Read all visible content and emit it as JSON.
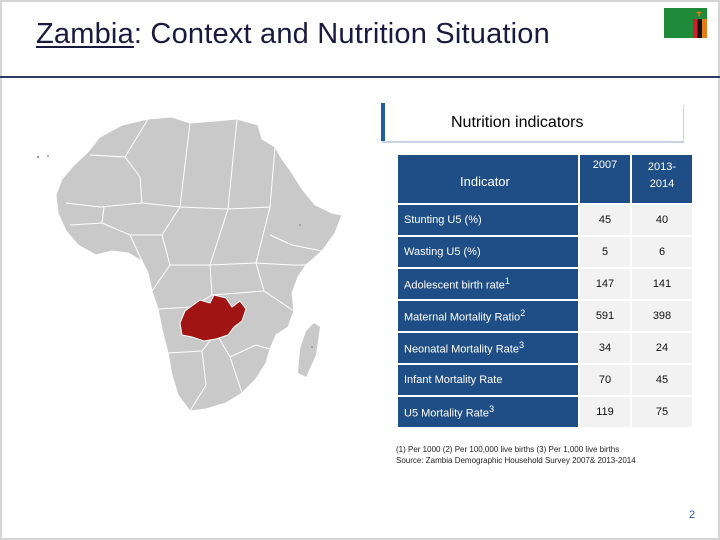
{
  "title": {
    "country": "Zambia",
    "rest": ": Context and Nutrition Situation"
  },
  "colors": {
    "title_rule": "#2f3a63",
    "table_header": "#1f4e86",
    "zambia_highlight": "#a01414",
    "map_fill": "#c9c9c9",
    "map_border": "#ffffff",
    "flag_green": "#1e8a3a",
    "flag_red": "#d21f2b",
    "flag_black": "#111111",
    "flag_orange": "#e37b17"
  },
  "section": {
    "label": "Nutrition indicators"
  },
  "table": {
    "header": {
      "indicator": "Indicator",
      "year1": "2007",
      "year2_line1": "2013-",
      "year2_line2": "2014"
    },
    "rows": [
      {
        "indicator": "Stunting U5 (%)",
        "v2007": "45",
        "v2014": "40"
      },
      {
        "indicator": "Wasting U5 (%)",
        "v2007": "5",
        "v2014": "6"
      },
      {
        "indicator": "Adolescent birth rate",
        "sup": "1",
        "v2007": "147",
        "v2014": "141"
      },
      {
        "indicator": "Maternal Mortality Ratio",
        "sup": "2",
        "v2007": "591",
        "v2014": "398"
      },
      {
        "indicator": "Neonatal Mortality Rate",
        "sup": "3",
        "v2007": "34",
        "v2014": "24"
      },
      {
        "indicator": "Infant Mortality Rate",
        "v2007": "70",
        "v2014": "45"
      },
      {
        "indicator": "U5 Mortality Rate",
        "sup": "3",
        "v2007": "119",
        "v2014": "75"
      }
    ]
  },
  "notes": {
    "line1": "(1)   Per 1000 (2) Per 100,000 live births (3) Per 1,000 live births",
    "line2": " Source: Zambia Demographic Household Survey 2007& 2013-2014"
  },
  "page_number": "2",
  "icons": {
    "flag": "zambia-flag-icon",
    "map": "africa-map"
  }
}
